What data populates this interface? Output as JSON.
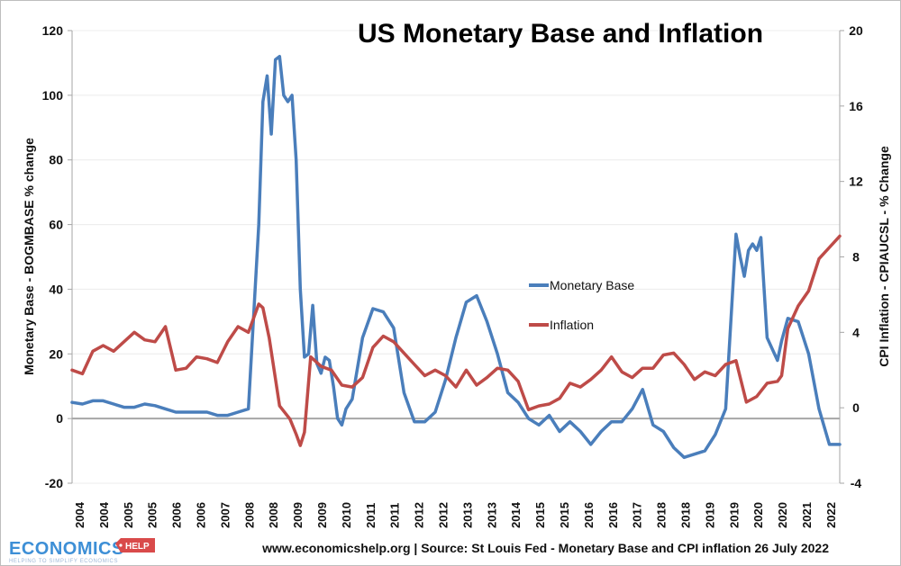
{
  "chart_data": {
    "type": "line",
    "title": "US Monetary Base and Inflation",
    "xlabel": "",
    "ylabel": "Monetary Base - BOGMBASE % change",
    "y2label": "CPI Inflation - CPIAUCSL -  % Change",
    "ylim": [
      -20,
      120
    ],
    "y2lim": [
      -4,
      20
    ],
    "yticks": [
      "120",
      "100",
      "80",
      "60",
      "40",
      "20",
      "0",
      "-20"
    ],
    "y2ticks": [
      "20",
      "16",
      "12",
      "8",
      "4",
      "0",
      "-4"
    ],
    "x_tick_labels": [
      "2004",
      "2004",
      "2005",
      "2005",
      "2006",
      "2006",
      "2007",
      "2008",
      "2008",
      "2009",
      "2009",
      "2010",
      "2011",
      "2011",
      "2012",
      "2012",
      "2013",
      "2013",
      "2014",
      "2015",
      "2015",
      "2016",
      "2016",
      "2017",
      "2018",
      "2018",
      "2019",
      "2019",
      "2020",
      "2020",
      "2021",
      "2022"
    ],
    "grid": true,
    "legend": {
      "position": "center-right",
      "entries": [
        "Monetary Base",
        "Inflation"
      ]
    },
    "x_range": [
      2004.0,
      2022.5
    ],
    "series": [
      {
        "name": "Monetary Base",
        "axis": "left",
        "color": "#4a7ebb",
        "x": [
          2004.0,
          2004.25,
          2004.5,
          2004.75,
          2005.0,
          2005.25,
          2005.5,
          2005.75,
          2006.0,
          2006.25,
          2006.5,
          2006.75,
          2007.0,
          2007.25,
          2007.5,
          2007.75,
          2008.0,
          2008.25,
          2008.5,
          2008.6,
          2008.7,
          2008.8,
          2008.9,
          2009.0,
          2009.1,
          2009.2,
          2009.3,
          2009.4,
          2009.5,
          2009.6,
          2009.7,
          2009.8,
          2009.9,
          2010.0,
          2010.1,
          2010.2,
          2010.3,
          2010.4,
          2010.5,
          2010.6,
          2010.75,
          2011.0,
          2011.25,
          2011.5,
          2011.75,
          2012.0,
          2012.25,
          2012.5,
          2012.75,
          2013.0,
          2013.25,
          2013.5,
          2013.75,
          2014.0,
          2014.25,
          2014.5,
          2014.75,
          2015.0,
          2015.25,
          2015.5,
          2015.75,
          2016.0,
          2016.25,
          2016.5,
          2016.75,
          2017.0,
          2017.25,
          2017.5,
          2017.75,
          2018.0,
          2018.25,
          2018.5,
          2018.75,
          2019.0,
          2019.25,
          2019.5,
          2019.75,
          2020.0,
          2020.1,
          2020.2,
          2020.3,
          2020.4,
          2020.5,
          2020.6,
          2020.75,
          2021.0,
          2021.1,
          2021.25,
          2021.5,
          2021.75,
          2022.0,
          2022.25,
          2022.5
        ],
        "values": [
          5,
          4.5,
          5.5,
          5.5,
          4.5,
          3.5,
          3.5,
          4.5,
          4,
          3,
          2,
          2,
          2,
          2,
          1,
          1,
          2,
          3,
          60,
          98,
          106,
          88,
          111,
          112,
          100,
          98,
          100,
          80,
          40,
          19,
          20,
          35,
          17,
          14,
          19,
          18,
          10,
          0,
          -2,
          3,
          6,
          25,
          34,
          33,
          28,
          8,
          -1,
          -1,
          2,
          12,
          25,
          36,
          38,
          30,
          20,
          8,
          5,
          0,
          -2,
          1,
          -4,
          -1,
          -4,
          -8,
          -4,
          -1,
          -1,
          3,
          9,
          -2,
          -4,
          -9,
          -12,
          -11,
          -10,
          -5,
          3,
          57,
          50,
          44,
          52,
          54,
          52,
          56,
          25,
          18,
          24,
          31,
          30,
          20,
          3,
          -8,
          -8
        ]
      },
      {
        "name": "Inflation",
        "axis": "right",
        "color": "#be4b48",
        "x": [
          2004.0,
          2004.25,
          2004.5,
          2004.75,
          2005.0,
          2005.25,
          2005.5,
          2005.75,
          2006.0,
          2006.25,
          2006.5,
          2006.75,
          2007.0,
          2007.25,
          2007.5,
          2007.75,
          2008.0,
          2008.25,
          2008.5,
          2008.6,
          2008.75,
          2009.0,
          2009.25,
          2009.4,
          2009.5,
          2009.6,
          2009.75,
          2010.0,
          2010.25,
          2010.5,
          2010.75,
          2011.0,
          2011.25,
          2011.5,
          2011.75,
          2012.0,
          2012.25,
          2012.5,
          2012.75,
          2013.0,
          2013.25,
          2013.5,
          2013.75,
          2014.0,
          2014.25,
          2014.5,
          2014.75,
          2015.0,
          2015.25,
          2015.5,
          2015.75,
          2016.0,
          2016.25,
          2016.5,
          2016.75,
          2017.0,
          2017.25,
          2017.5,
          2017.75,
          2018.0,
          2018.25,
          2018.5,
          2018.75,
          2019.0,
          2019.25,
          2019.5,
          2019.75,
          2020.0,
          2020.25,
          2020.5,
          2020.75,
          2021.0,
          2021.1,
          2021.25,
          2021.5,
          2021.75,
          2022.0,
          2022.25,
          2022.5
        ],
        "values": [
          2.0,
          1.8,
          3.0,
          3.3,
          3.0,
          3.5,
          4.0,
          3.6,
          3.5,
          4.3,
          2.0,
          2.1,
          2.7,
          2.6,
          2.4,
          3.5,
          4.3,
          4.0,
          5.5,
          5.3,
          3.7,
          0.1,
          -0.6,
          -1.4,
          -2.0,
          -1.3,
          2.7,
          2.2,
          2.0,
          1.2,
          1.1,
          1.6,
          3.2,
          3.8,
          3.5,
          2.9,
          2.3,
          1.7,
          2.0,
          1.7,
          1.1,
          2.0,
          1.2,
          1.6,
          2.1,
          2.0,
          1.4,
          -0.1,
          0.1,
          0.2,
          0.5,
          1.3,
          1.1,
          1.5,
          2.0,
          2.7,
          1.9,
          1.6,
          2.1,
          2.1,
          2.8,
          2.9,
          2.3,
          1.5,
          1.9,
          1.7,
          2.3,
          2.5,
          0.3,
          0.6,
          1.3,
          1.4,
          1.7,
          4.2,
          5.4,
          6.2,
          7.9,
          8.5,
          9.1
        ]
      }
    ]
  },
  "footer": {
    "source": "www.economicshelp.org | Source: St Louis Fed - Monetary Base and CPI inflation 26 July 2022"
  },
  "logo": {
    "main": "ECONOMICS",
    "tag": "HELP",
    "subtitle": "HELPING TO SIMPLIFY ECONOMICS",
    "colors": {
      "main": "#3d8fd6",
      "tag": "#d94a4a"
    }
  }
}
